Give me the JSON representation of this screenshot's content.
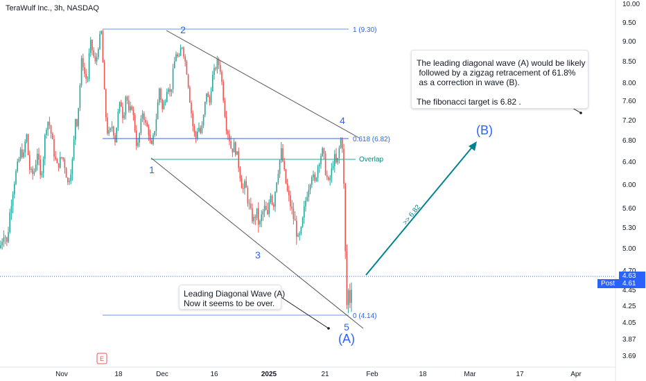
{
  "header": {
    "title": "TeraWulf Inc., 3h, NASDAQ"
  },
  "colors": {
    "up": "#26a69a",
    "down": "#ef5350",
    "accent": "#2962ff",
    "arrow": "#00838f",
    "last": "#2962ff"
  },
  "chart_data": {
    "type": "candlestick",
    "y_ticks": [
      "10.00",
      "9.50",
      "9.00",
      "8.50",
      "8.00",
      "7.60",
      "7.20",
      "6.80",
      "6.40",
      "6.00",
      "5.60",
      "5.30",
      "5.00",
      "4.70",
      "4.45",
      "4.25",
      "4.05",
      "3.87",
      "3.69"
    ],
    "x_ticks": [
      "Nov",
      "18",
      "Dec",
      "16",
      "2025",
      "21",
      "Feb",
      "18",
      "Mar",
      "17",
      "Apr"
    ],
    "ylim": [
      3.6,
      10.0
    ],
    "price_path": [
      [
        0,
        5.0
      ],
      [
        6,
        5.25
      ],
      [
        10,
        5.05
      ],
      [
        14,
        5.5
      ],
      [
        18,
        5.85
      ],
      [
        22,
        6.15
      ],
      [
        26,
        6.35
      ],
      [
        30,
        6.6
      ],
      [
        34,
        6.5
      ],
      [
        38,
        6.95
      ],
      [
        42,
        6.3
      ],
      [
        46,
        6.15
      ],
      [
        50,
        6.25
      ],
      [
        54,
        6.6
      ],
      [
        58,
        6.1
      ],
      [
        62,
        6.4
      ],
      [
        66,
        7.05
      ],
      [
        70,
        7.2
      ],
      [
        74,
        6.9
      ],
      [
        78,
        6.55
      ],
      [
        82,
        6.3
      ],
      [
        86,
        6.4
      ],
      [
        90,
        6.5
      ],
      [
        94,
        6.3
      ],
      [
        98,
        6.0
      ],
      [
        102,
        6.25
      ],
      [
        106,
        6.5
      ],
      [
        108,
        7.4
      ],
      [
        110,
        7.0
      ],
      [
        114,
        7.6
      ],
      [
        118,
        8.6
      ],
      [
        122,
        8.2
      ],
      [
        126,
        8.0
      ],
      [
        130,
        9.0
      ],
      [
        134,
        8.7
      ],
      [
        138,
        8.4
      ],
      [
        142,
        8.9
      ],
      [
        146,
        9.3
      ],
      [
        150,
        7.9
      ],
      [
        154,
        7.0
      ],
      [
        158,
        6.9
      ],
      [
        162,
        7.1
      ],
      [
        166,
        6.8
      ],
      [
        170,
        7.3
      ],
      [
        174,
        7.6
      ],
      [
        178,
        7.2
      ],
      [
        182,
        7.8
      ],
      [
        186,
        7.3
      ],
      [
        190,
        7.5
      ],
      [
        194,
        7.1
      ],
      [
        198,
        6.6
      ],
      [
        202,
        7.0
      ],
      [
        206,
        7.4
      ],
      [
        210,
        7.1
      ],
      [
        214,
        7.0
      ],
      [
        218,
        6.6
      ],
      [
        222,
        6.9
      ],
      [
        226,
        7.3
      ],
      [
        230,
        7.9
      ],
      [
        234,
        7.4
      ],
      [
        238,
        7.6
      ],
      [
        242,
        8.0
      ],
      [
        246,
        7.7
      ],
      [
        250,
        8.3
      ],
      [
        254,
        8.7
      ],
      [
        258,
        8.5
      ],
      [
        262,
        8.95
      ],
      [
        266,
        8.6
      ],
      [
        270,
        8.2
      ],
      [
        274,
        7.6
      ],
      [
        278,
        7.1
      ],
      [
        282,
        6.8
      ],
      [
        286,
        7.1
      ],
      [
        290,
        6.9
      ],
      [
        294,
        7.3
      ],
      [
        298,
        7.8
      ],
      [
        302,
        7.5
      ],
      [
        306,
        8.1
      ],
      [
        310,
        8.3
      ],
      [
        314,
        8.5
      ],
      [
        318,
        8.3
      ],
      [
        322,
        7.7
      ],
      [
        326,
        7.1
      ],
      [
        330,
        6.9
      ],
      [
        334,
        6.6
      ],
      [
        338,
        6.7
      ],
      [
        342,
        6.5
      ],
      [
        346,
        6.2
      ],
      [
        350,
        5.9
      ],
      [
        354,
        6.0
      ],
      [
        358,
        5.7
      ],
      [
        362,
        5.5
      ],
      [
        366,
        5.4
      ],
      [
        370,
        5.55
      ],
      [
        374,
        5.3
      ],
      [
        378,
        5.5
      ],
      [
        382,
        5.6
      ],
      [
        386,
        5.45
      ],
      [
        390,
        5.9
      ],
      [
        394,
        5.6
      ],
      [
        398,
        6.0
      ],
      [
        402,
        6.3
      ],
      [
        406,
        6.6
      ],
      [
        410,
        6.2
      ],
      [
        414,
        5.9
      ],
      [
        418,
        5.7
      ],
      [
        422,
        5.5
      ],
      [
        426,
        5.35
      ],
      [
        430,
        5.1
      ],
      [
        434,
        5.2
      ],
      [
        438,
        5.5
      ],
      [
        442,
        5.8
      ],
      [
        446,
        6.0
      ],
      [
        450,
        6.2
      ],
      [
        454,
        6.0
      ],
      [
        458,
        6.3
      ],
      [
        462,
        6.5
      ],
      [
        466,
        6.6
      ],
      [
        470,
        6.2
      ],
      [
        474,
        6.0
      ],
      [
        478,
        6.2
      ],
      [
        482,
        6.5
      ],
      [
        486,
        6.3
      ],
      [
        490,
        6.7
      ],
      [
        493,
        6.9
      ],
      [
        495,
        6.4
      ],
      [
        497,
        5.55
      ],
      [
        499,
        4.5
      ],
      [
        501,
        4.15
      ],
      [
        503,
        4.5
      ],
      [
        505,
        4.3
      ],
      [
        508,
        4.63
      ]
    ],
    "annotations": {
      "fib_1": "1 (9.30)",
      "fib_0618": "0.618 (6.82)",
      "fib_0": "0 (4.14)",
      "overlap": "Overlap",
      "waves": [
        "1",
        "2",
        "3",
        "4",
        "5"
      ],
      "wave_A": "(A)",
      "wave_B": "(B)",
      "arrow_label": ">> 6.82",
      "note1_line1": "Leading Diagonal Wave (A)",
      "note1_line2": "Now it seems to be over.",
      "note2_line1": "The leading diagonal wave (A) would be likely",
      "note2_line2": " followed by a zigzag retracement of 61.8%",
      "note2_line3": " as a correction in wave (B).",
      "note2_line4": "The fibonacci target is 6.82 ."
    },
    "last_price": "4.63",
    "post_label": "Post",
    "post_price": "4.61",
    "earnings_marker": "E"
  }
}
